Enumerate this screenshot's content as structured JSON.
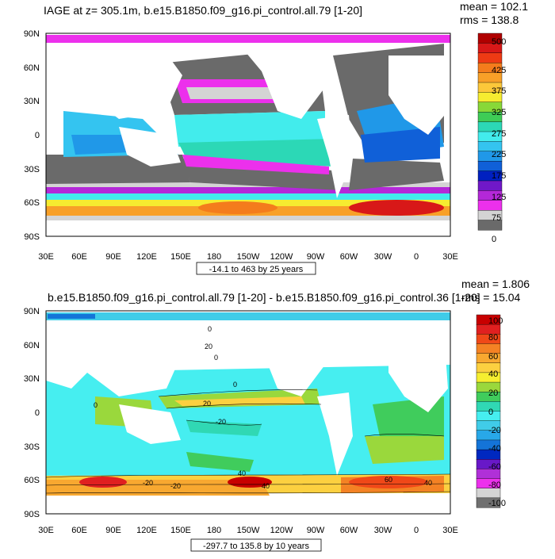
{
  "panels": [
    {
      "title": "IAGE at z= 305.1m, b.e15.B1850.f09_g16.pi_control.all.79 [1-20]",
      "stats": {
        "mean": "mean = 102.1",
        "rms": "rms = 138.8"
      },
      "range_label": "-14.1 to 463 by 25 years",
      "colorbar": {
        "labels": [
          "500",
          "425",
          "375",
          "325",
          "275",
          "225",
          "175",
          "125",
          "75",
          "0"
        ],
        "colors": [
          "#b00000",
          "#d81818",
          "#ee3a14",
          "#f47c1c",
          "#f8a028",
          "#fcc83a",
          "#f6ec30",
          "#88d838",
          "#3ecc56",
          "#2cd8b6",
          "#42ecec",
          "#34c4f0",
          "#2098e8",
          "#1060d8",
          "#0020c0",
          "#7018c8",
          "#b428d8",
          "#ec30ec",
          "#d4d4d4",
          "#6a6a6a"
        ]
      }
    },
    {
      "title": "b.e15.B1850.f09_g16.pi_control.all.79 [1-20] - b.e15.B1850.f09_g16.pi_control.36 [1-20]",
      "stats": {
        "mean": "mean = 1.806",
        "rms": "rms = 15.04"
      },
      "range_label": "-297.7 to 135.8 by 10 years",
      "contour_labels": [
        "0",
        "20",
        "0",
        "0",
        "20",
        "0",
        "-20",
        "40",
        "40",
        "60",
        "40",
        "-20",
        "-20"
      ],
      "colorbar": {
        "labels": [
          "100",
          "80",
          "60",
          "40",
          "20",
          "0",
          "-20",
          "-40",
          "-60",
          "-80",
          "-100"
        ],
        "colors": [
          "#c80000",
          "#e02020",
          "#f04818",
          "#f48224",
          "#f8a830",
          "#fcd040",
          "#f6ee30",
          "#9ad83c",
          "#40cc5c",
          "#30d8b4",
          "#46eef0",
          "#40cce8",
          "#28a8e8",
          "#1474d8",
          "#0028c0",
          "#6818c8",
          "#b030d8",
          "#ec30ec",
          "#d4d4d4",
          "#707070"
        ]
      }
    }
  ],
  "lat_labels": [
    "90N",
    "60N",
    "30N",
    "0",
    "30S",
    "60S",
    "90S"
  ],
  "lon_labels": [
    "30E",
    "60E",
    "90E",
    "120E",
    "150E",
    "180",
    "150W",
    "120W",
    "90W",
    "60W",
    "30W",
    "0",
    "30E"
  ]
}
